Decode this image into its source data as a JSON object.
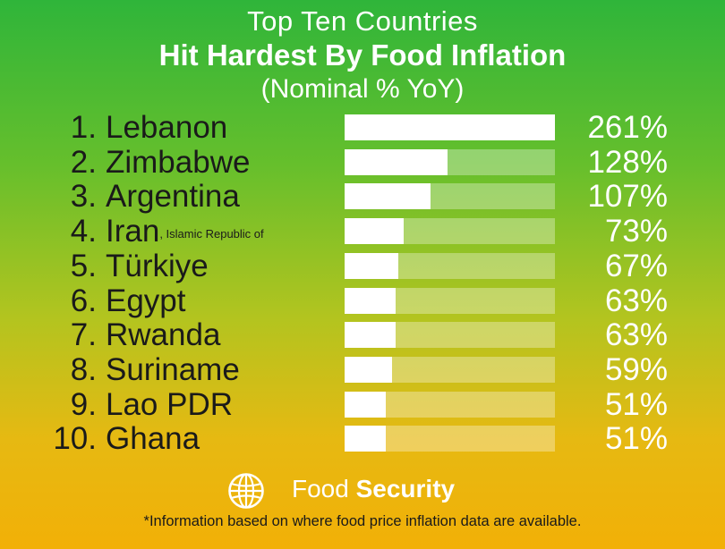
{
  "title": {
    "line1": "Top Ten Countries",
    "line2": "Hit Hardest By Food Inflation",
    "line3": "(Nominal % YoY)"
  },
  "chart_data": {
    "type": "bar",
    "orientation": "horizontal",
    "title": "Top Ten Countries Hit Hardest By Food Inflation (Nominal % YoY)",
    "categories": [
      "Lebanon",
      "Zimbabwe",
      "Argentina",
      "Iran",
      "Türkiye",
      "Egypt",
      "Rwanda",
      "Suriname",
      "Lao PDR",
      "Ghana"
    ],
    "values": [
      261,
      128,
      107,
      73,
      67,
      63,
      63,
      59,
      51,
      51
    ],
    "xlim": [
      0,
      261
    ],
    "rows": [
      {
        "rank": "1.",
        "country": "Lebanon",
        "qualifier": "",
        "value": 261,
        "label": "261%"
      },
      {
        "rank": "2.",
        "country": "Zimbabwe",
        "qualifier": "",
        "value": 128,
        "label": "128%"
      },
      {
        "rank": "3.",
        "country": "Argentina",
        "qualifier": "",
        "value": 107,
        "label": "107%"
      },
      {
        "rank": "4.",
        "country": "Iran",
        "qualifier": ", Islamic Republic of",
        "value": 73,
        "label": "73%"
      },
      {
        "rank": "5.",
        "country": "Türkiye",
        "qualifier": "",
        "value": 67,
        "label": "67%"
      },
      {
        "rank": "6.",
        "country": "Egypt",
        "qualifier": "",
        "value": 63,
        "label": "63%"
      },
      {
        "rank": "7.",
        "country": "Rwanda",
        "qualifier": "",
        "value": 63,
        "label": "63%"
      },
      {
        "rank": "8.",
        "country": "Suriname",
        "qualifier": "",
        "value": 59,
        "label": "59%"
      },
      {
        "rank": "9.",
        "country": "Lao PDR",
        "qualifier": "",
        "value": 51,
        "label": "51%"
      },
      {
        "rank": "10.",
        "country": "Ghana",
        "qualifier": "",
        "value": 51,
        "label": "51%"
      }
    ]
  },
  "logo": {
    "icon": "globe-icon",
    "text_regular": "Food",
    "text_bold": "Security"
  },
  "footnote": "*Information based on where food price inflation data are available.",
  "colors": {
    "bar": "#ffffff",
    "track": "rgba(255,255,255,0.32)",
    "label_text": "#1a1a1a",
    "value_text": "#ffffff",
    "gradient_top": "#2fb53a",
    "gradient_bottom": "#f2b007"
  }
}
